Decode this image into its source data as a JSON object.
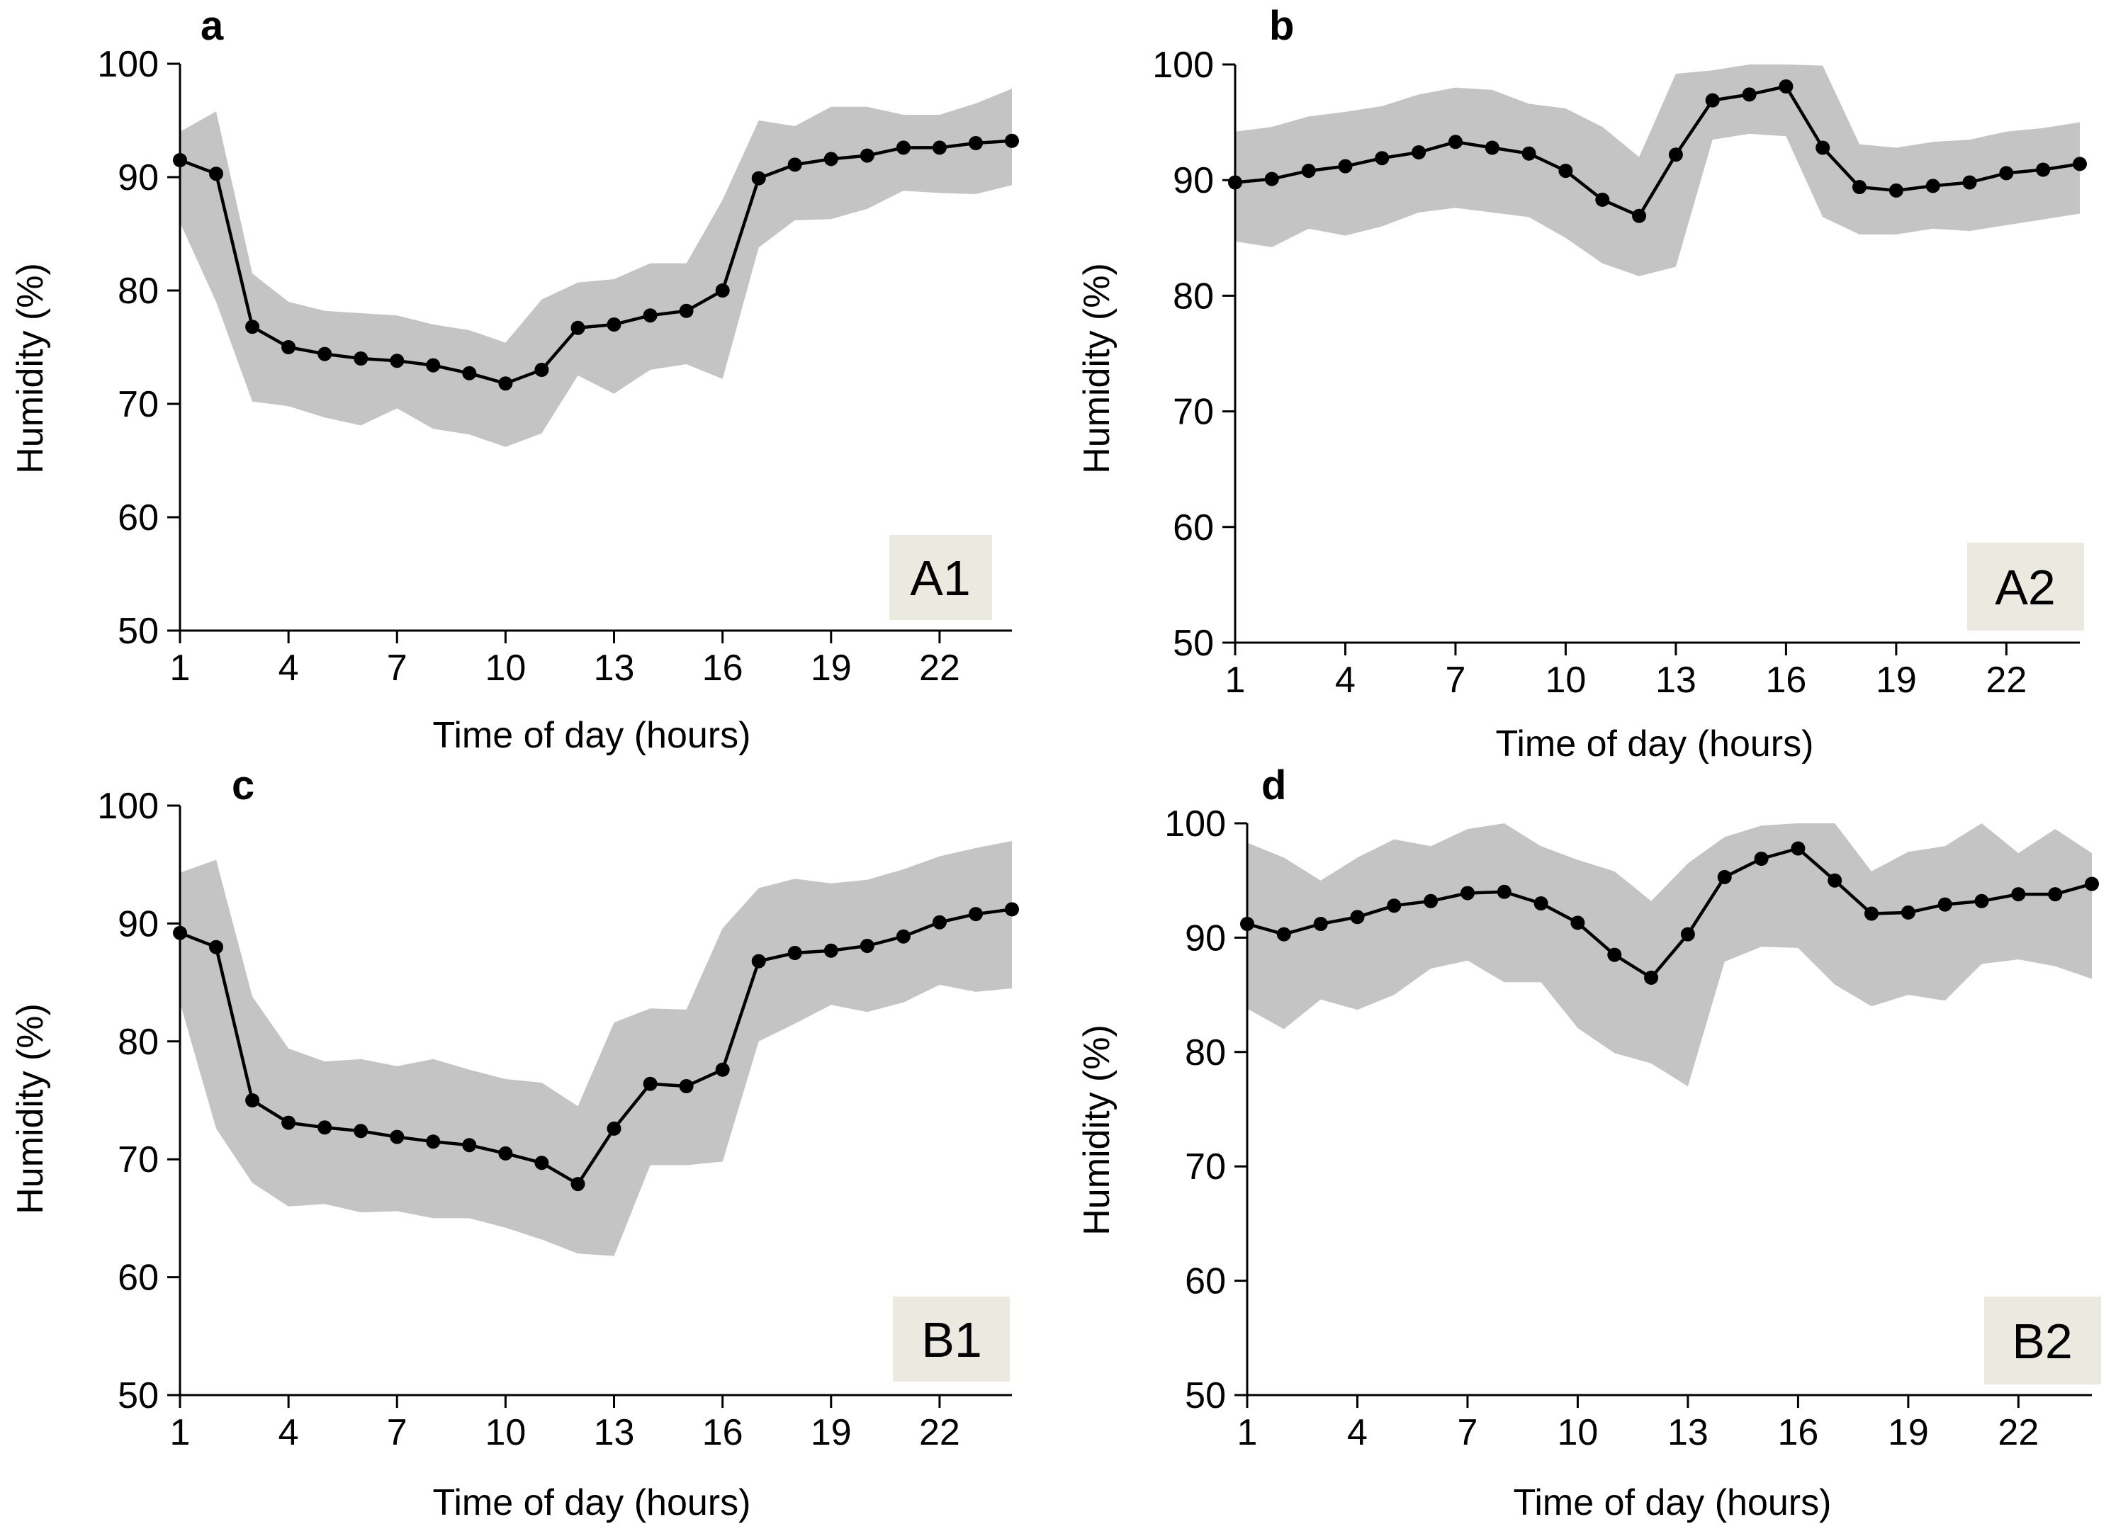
{
  "figure": {
    "colors": {
      "band": "#c4c4c4",
      "line": "#000000",
      "tag_bg": "#ece9e1"
    }
  },
  "chart_data": [
    {
      "type": "line",
      "panel": "a",
      "tag": "A1",
      "xlabel": "Time of day (hours)",
      "ylabel": "Humidity (%)",
      "xlim": [
        1,
        24
      ],
      "ylim": [
        50,
        100
      ],
      "xticks": [
        1,
        4,
        7,
        10,
        13,
        16,
        19,
        22
      ],
      "yticks": [
        50,
        60,
        70,
        80,
        90,
        100
      ],
      "x": [
        1,
        2,
        3,
        4,
        5,
        6,
        7,
        8,
        9,
        10,
        11,
        12,
        13,
        14,
        15,
        16,
        17,
        18,
        19,
        20,
        21,
        22,
        23,
        24
      ],
      "series": [
        {
          "name": "mean",
          "values": [
            91.5,
            90.3,
            76.8,
            75.0,
            74.4,
            74.0,
            73.8,
            73.4,
            72.7,
            71.8,
            73.0,
            76.7,
            77.0,
            77.8,
            78.2,
            80.0,
            89.9,
            91.1,
            91.6,
            91.9,
            92.6,
            92.6,
            93.0,
            93.2
          ]
        },
        {
          "name": "upper",
          "values": [
            94,
            95.8,
            81.5,
            79,
            78.2,
            78,
            77.8,
            77,
            76.5,
            75.4,
            79.2,
            80.7,
            81,
            82.4,
            82.4,
            88,
            95,
            94.5,
            96.2,
            96.2,
            95.5,
            95.5,
            96.5,
            97.8
          ]
        },
        {
          "name": "lower",
          "values": [
            86,
            79,
            70.2,
            69.8,
            68.8,
            68.1,
            69.6,
            67.8,
            67.3,
            66.2,
            67.4,
            72.5,
            70.9,
            73,
            73.5,
            72.2,
            83.8,
            86.2,
            86.3,
            87.2,
            88.8,
            88.6,
            88.5,
            89.3
          ]
        }
      ]
    },
    {
      "type": "line",
      "panel": "b",
      "tag": "A2",
      "xlabel": "Time of day (hours)",
      "ylabel": "Humidity (%)",
      "xlim": [
        1,
        24
      ],
      "ylim": [
        50,
        100
      ],
      "xticks": [
        1,
        4,
        7,
        10,
        13,
        16,
        19,
        22
      ],
      "yticks": [
        50,
        60,
        70,
        80,
        90,
        100
      ],
      "x": [
        1,
        2,
        3,
        4,
        5,
        6,
        7,
        8,
        9,
        10,
        11,
        12,
        13,
        14,
        15,
        16,
        17,
        18,
        19,
        20,
        21,
        22,
        23,
        24
      ],
      "series": [
        {
          "name": "mean",
          "values": [
            89.8,
            90.1,
            90.8,
            91.2,
            91.9,
            92.4,
            93.3,
            92.8,
            92.3,
            90.8,
            88.3,
            86.9,
            92.2,
            96.9,
            97.4,
            98.1,
            92.8,
            89.4,
            89.1,
            89.5,
            89.8,
            90.6,
            90.9,
            91.4
          ]
        },
        {
          "name": "upper",
          "values": [
            94.2,
            94.6,
            95.5,
            95.9,
            96.4,
            97.4,
            98,
            97.8,
            96.6,
            96.2,
            94.6,
            92,
            99.2,
            99.5,
            100,
            100,
            99.9,
            93.1,
            92.8,
            93.3,
            93.5,
            94.2,
            94.5,
            95
          ]
        },
        {
          "name": "lower",
          "values": [
            84.7,
            84.2,
            85.8,
            85.2,
            86,
            87.2,
            87.6,
            87.2,
            86.8,
            85,
            82.8,
            81.7,
            82.5,
            93.5,
            94,
            93.8,
            86.8,
            85.3,
            85.3,
            85.8,
            85.6,
            86.1,
            86.6,
            87.1
          ]
        }
      ]
    },
    {
      "type": "line",
      "panel": "c",
      "tag": "B1",
      "xlabel": "Time of day (hours)",
      "ylabel": "Humidity (%)",
      "xlim": [
        1,
        24
      ],
      "ylim": [
        50,
        100
      ],
      "xticks": [
        1,
        4,
        7,
        10,
        13,
        16,
        19,
        22
      ],
      "yticks": [
        50,
        60,
        70,
        80,
        90,
        100
      ],
      "x": [
        1,
        2,
        3,
        4,
        5,
        6,
        7,
        8,
        9,
        10,
        11,
        12,
        13,
        14,
        15,
        16,
        17,
        18,
        19,
        20,
        21,
        22,
        23,
        24
      ],
      "series": [
        {
          "name": "mean",
          "values": [
            89.2,
            88.0,
            75.0,
            73.1,
            72.7,
            72.4,
            71.9,
            71.5,
            71.2,
            70.5,
            69.7,
            67.9,
            72.6,
            76.4,
            76.2,
            77.6,
            86.8,
            87.5,
            87.7,
            88.1,
            88.9,
            90.1,
            90.8,
            91.2
          ]
        },
        {
          "name": "upper",
          "values": [
            94.3,
            95.4,
            83.8,
            79.4,
            78.3,
            78.5,
            77.9,
            78.5,
            77.6,
            76.8,
            76.5,
            74.5,
            81.6,
            82.8,
            82.7,
            89.6,
            93,
            93.8,
            93.4,
            93.7,
            94.6,
            95.7,
            96.4,
            97
          ]
        },
        {
          "name": "lower",
          "values": [
            83.3,
            72.6,
            68,
            66,
            66.2,
            65.5,
            65.6,
            65,
            65,
            64.2,
            63.2,
            62,
            61.8,
            69.5,
            69.5,
            69.8,
            80,
            81.5,
            83.1,
            82.5,
            83.3,
            84.8,
            84.2,
            84.5
          ]
        }
      ]
    },
    {
      "type": "line",
      "panel": "d",
      "tag": "B2",
      "xlabel": "Time of day (hours)",
      "ylabel": "Humidity (%)",
      "xlim": [
        1,
        24
      ],
      "ylim": [
        50,
        100
      ],
      "xticks": [
        1,
        4,
        7,
        10,
        13,
        16,
        19,
        22
      ],
      "yticks": [
        50,
        60,
        70,
        80,
        90,
        100
      ],
      "x": [
        1,
        2,
        3,
        4,
        5,
        6,
        7,
        8,
        9,
        10,
        11,
        12,
        13,
        14,
        15,
        16,
        17,
        18,
        19,
        20,
        21,
        22,
        23,
        24
      ],
      "series": [
        {
          "name": "mean",
          "values": [
            91.2,
            90.3,
            91.2,
            91.8,
            92.8,
            93.2,
            93.9,
            94.0,
            93.0,
            91.3,
            88.5,
            86.5,
            90.3,
            95.3,
            96.9,
            97.8,
            95.0,
            92.1,
            92.2,
            92.9,
            93.2,
            93.8,
            93.8,
            94.7
          ]
        },
        {
          "name": "upper",
          "values": [
            98.3,
            97,
            95,
            97,
            98.6,
            98,
            99.5,
            100,
            98,
            96.8,
            95.8,
            93.2,
            96.5,
            98.8,
            99.8,
            100,
            100,
            95.8,
            97.5,
            98,
            100,
            97.4,
            99.5,
            97.4
          ]
        },
        {
          "name": "lower",
          "values": [
            83.8,
            82,
            84.6,
            83.7,
            85,
            87.3,
            88,
            86.1,
            86.1,
            82.1,
            79.9,
            79,
            77,
            87.9,
            89.2,
            89.1,
            85.9,
            84,
            85,
            84.5,
            87.7,
            88.1,
            87.5,
            86.4
          ]
        }
      ]
    }
  ]
}
